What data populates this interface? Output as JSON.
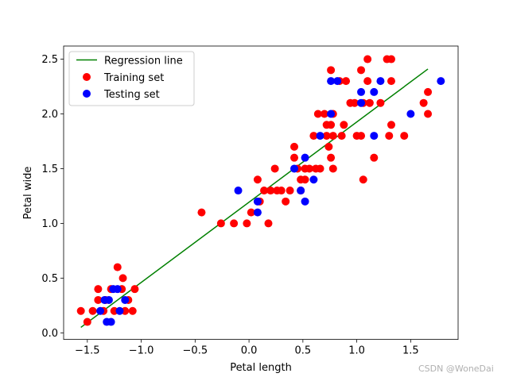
{
  "watermark": "CSDN @WoneDai",
  "chart_data": {
    "type": "scatter",
    "title": "",
    "xlabel": "Petal length",
    "ylabel": "Petal wide",
    "xlim": [
      -1.72,
      1.94
    ],
    "ylim": [
      -0.06,
      2.62
    ],
    "xticks": [
      -1.5,
      -1.0,
      -0.5,
      0.0,
      0.5,
      1.0,
      1.5
    ],
    "xtick_labels": [
      "−1.5",
      "−1.0",
      "−0.5",
      "0.0",
      "0.5",
      "1.0",
      "1.5"
    ],
    "yticks": [
      0.0,
      0.5,
      1.0,
      1.5,
      2.0,
      2.5
    ],
    "ytick_labels": [
      "0.0",
      "0.5",
      "1.0",
      "1.5",
      "2.0",
      "2.5"
    ],
    "grid": false,
    "legend": "top-left",
    "series": [
      {
        "name": "Regression line",
        "kind": "line",
        "color": "#008000",
        "points": [
          [
            -1.56,
            0.05
          ],
          [
            1.66,
            2.41
          ]
        ]
      },
      {
        "name": "Training set",
        "kind": "scatter",
        "color": "#ff0000",
        "points": [
          [
            -1.56,
            0.2
          ],
          [
            -1.5,
            0.1
          ],
          [
            -1.45,
            0.2
          ],
          [
            -1.4,
            0.3
          ],
          [
            -1.4,
            0.4
          ],
          [
            -1.35,
            0.2
          ],
          [
            -1.33,
            0.3
          ],
          [
            -1.28,
            0.4
          ],
          [
            -1.25,
            0.2
          ],
          [
            -1.22,
            0.6
          ],
          [
            -1.18,
            0.4
          ],
          [
            -1.17,
            0.5
          ],
          [
            -1.15,
            0.2
          ],
          [
            -1.12,
            0.3
          ],
          [
            -1.08,
            0.2
          ],
          [
            -1.06,
            0.4
          ],
          [
            -0.44,
            1.1
          ],
          [
            -0.26,
            1.0
          ],
          [
            -0.14,
            1.0
          ],
          [
            -0.02,
            1.0
          ],
          [
            0.02,
            1.1
          ],
          [
            0.08,
            1.4
          ],
          [
            0.1,
            1.2
          ],
          [
            0.14,
            1.3
          ],
          [
            0.18,
            1.0
          ],
          [
            0.2,
            1.3
          ],
          [
            0.24,
            1.5
          ],
          [
            0.26,
            1.3
          ],
          [
            0.3,
            1.3
          ],
          [
            0.34,
            1.2
          ],
          [
            0.38,
            1.3
          ],
          [
            0.42,
            1.6
          ],
          [
            0.42,
            1.7
          ],
          [
            0.45,
            1.5
          ],
          [
            0.48,
            1.3
          ],
          [
            0.48,
            1.4
          ],
          [
            0.52,
            1.5
          ],
          [
            0.52,
            1.4
          ],
          [
            0.56,
            1.5
          ],
          [
            0.6,
            1.8
          ],
          [
            0.64,
            2.0
          ],
          [
            0.66,
            1.5
          ],
          [
            0.7,
            2.0
          ],
          [
            0.72,
            1.9
          ],
          [
            0.72,
            1.8
          ],
          [
            0.74,
            1.7
          ],
          [
            0.76,
            2.4
          ],
          [
            0.76,
            1.9
          ],
          [
            0.76,
            1.6
          ],
          [
            0.78,
            2.0
          ],
          [
            0.78,
            1.8
          ],
          [
            0.78,
            1.5
          ],
          [
            0.84,
            2.3
          ],
          [
            0.88,
            1.9
          ],
          [
            0.9,
            2.3
          ],
          [
            0.94,
            2.1
          ],
          [
            0.98,
            2.1
          ],
          [
            1.0,
            1.8
          ],
          [
            1.04,
            2.4
          ],
          [
            1.04,
            1.8
          ],
          [
            1.06,
            1.4
          ],
          [
            1.1,
            2.5
          ],
          [
            1.1,
            2.3
          ],
          [
            1.12,
            2.1
          ],
          [
            1.16,
            1.6
          ],
          [
            1.22,
            2.1
          ],
          [
            1.28,
            2.5
          ],
          [
            1.3,
            1.8
          ],
          [
            1.32,
            2.5
          ],
          [
            1.32,
            2.3
          ],
          [
            1.32,
            1.9
          ],
          [
            1.44,
            1.8
          ],
          [
            1.62,
            2.1
          ],
          [
            1.66,
            2.2
          ],
          [
            1.66,
            2.0
          ],
          [
            1.06,
            2.1
          ],
          [
            0.86,
            1.8
          ],
          [
            0.62,
            1.5
          ]
        ]
      },
      {
        "name": "Testing set",
        "kind": "scatter",
        "color": "#0000ff",
        "points": [
          [
            -1.38,
            0.2
          ],
          [
            -1.34,
            0.3
          ],
          [
            -1.32,
            0.1
          ],
          [
            -1.3,
            0.3
          ],
          [
            -1.28,
            0.1
          ],
          [
            -1.26,
            0.4
          ],
          [
            -1.22,
            0.4
          ],
          [
            -1.2,
            0.2
          ],
          [
            -1.15,
            0.3
          ],
          [
            -0.1,
            1.3
          ],
          [
            0.08,
            1.2
          ],
          [
            0.08,
            1.1
          ],
          [
            0.42,
            1.5
          ],
          [
            0.48,
            1.3
          ],
          [
            0.52,
            1.6
          ],
          [
            0.52,
            1.2
          ],
          [
            0.6,
            1.4
          ],
          [
            0.66,
            1.8
          ],
          [
            0.76,
            2.3
          ],
          [
            0.76,
            2.0
          ],
          [
            0.82,
            2.3
          ],
          [
            1.04,
            2.2
          ],
          [
            1.04,
            2.1
          ],
          [
            1.16,
            2.2
          ],
          [
            1.16,
            1.8
          ],
          [
            1.22,
            2.3
          ],
          [
            1.5,
            2.0
          ],
          [
            1.78,
            2.3
          ]
        ]
      }
    ]
  }
}
